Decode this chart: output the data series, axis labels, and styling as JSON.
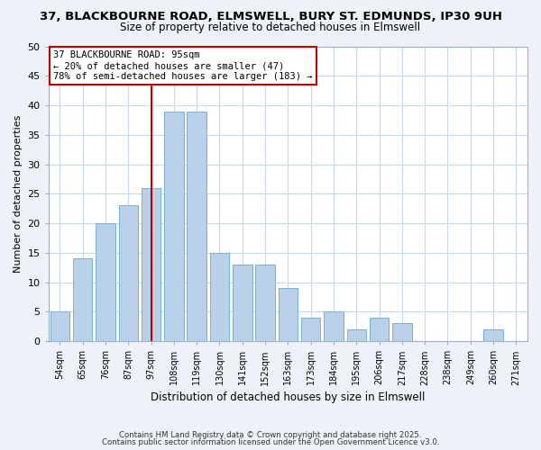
{
  "title1": "37, BLACKBOURNE ROAD, ELMSWELL, BURY ST. EDMUNDS, IP30 9UH",
  "title2": "Size of property relative to detached houses in Elmswell",
  "xlabel": "Distribution of detached houses by size in Elmswell",
  "ylabel": "Number of detached properties",
  "bin_labels": [
    "54sqm",
    "65sqm",
    "76sqm",
    "87sqm",
    "97sqm",
    "108sqm",
    "119sqm",
    "130sqm",
    "141sqm",
    "152sqm",
    "163sqm",
    "173sqm",
    "184sqm",
    "195sqm",
    "206sqm",
    "217sqm",
    "228sqm",
    "238sqm",
    "249sqm",
    "260sqm",
    "271sqm"
  ],
  "bar_values": [
    5,
    14,
    20,
    23,
    26,
    39,
    39,
    15,
    13,
    13,
    9,
    4,
    5,
    2,
    4,
    3,
    0,
    0,
    0,
    2,
    0
  ],
  "bar_color": "#b8d0e8",
  "bar_edge_color": "#7aafd4",
  "grid_color": "#c8d8ea",
  "vline_x": 4.5,
  "vline_color": "#bb0000",
  "annotation_text": "37 BLACKBOURNE ROAD: 95sqm\n← 20% of detached houses are smaller (47)\n78% of semi-detached houses are larger (183) →",
  "annotation_box_color": "#ffffff",
  "annotation_box_edge": "#bb0000",
  "ylim": [
    0,
    50
  ],
  "yticks": [
    0,
    5,
    10,
    15,
    20,
    25,
    30,
    35,
    40,
    45,
    50
  ],
  "footer1": "Contains HM Land Registry data © Crown copyright and database right 2025.",
  "footer2": "Contains public sector information licensed under the Open Government Licence v3.0.",
  "bg_color": "#eef2f8",
  "plot_bg_color": "#ffffff",
  "title1_fontsize": 9.5,
  "title2_fontsize": 8.5
}
